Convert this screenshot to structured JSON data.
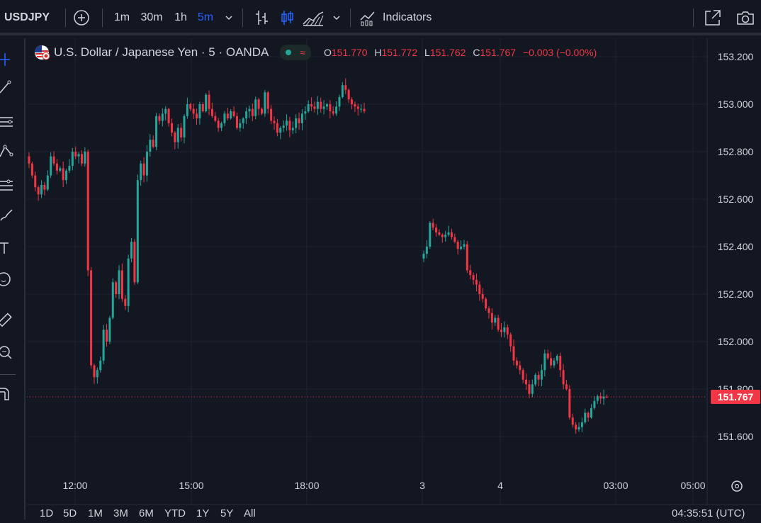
{
  "toolbar": {
    "symbol": "USDJPY",
    "intervals": [
      "1m",
      "30m",
      "1h",
      "5m"
    ],
    "active_interval": "5m",
    "indicators_label": "Indicators"
  },
  "legend": {
    "title": "U.S. Dollar / Japanese Yen · 5 · OANDA",
    "o_label": "O",
    "o_value": "151.770",
    "h_label": "H",
    "h_value": "151.772",
    "l_label": "L",
    "l_value": "151.762",
    "c_label": "C",
    "c_value": "151.767",
    "change": "−0.003 (−0.00%)"
  },
  "price_axis": {
    "labels": [
      "153.200",
      "153.000",
      "152.800",
      "152.600",
      "152.400",
      "152.200",
      "152.000",
      "151.800",
      "151.600"
    ],
    "current_price": "151.767"
  },
  "time_axis": {
    "labels": [
      "12:00",
      "15:00",
      "18:00",
      "3",
      "4",
      "03:00",
      "05:00"
    ]
  },
  "ranges": [
    "1D",
    "5D",
    "1M",
    "3M",
    "6M",
    "YTD",
    "1Y",
    "5Y",
    "All"
  ],
  "clock": "04:35:51 (UTC)",
  "colors": {
    "background": "#131722",
    "up": "#26a69a",
    "down": "#f23645",
    "accent": "#2962ff",
    "grid": "#1f2330"
  },
  "icons": {
    "add": "plus-circle-icon",
    "chart_types": [
      "bar-chart-icon",
      "candles-icon",
      "area-chart-icon"
    ],
    "left_tools": [
      "crosshair-icon",
      "trendline-icon",
      "fib-icon",
      "pattern-icon",
      "forecast-icon",
      "brush-icon",
      "text-icon",
      "emoji-icon",
      "ruler-icon",
      "zoom-icon",
      "magnet-icon"
    ]
  },
  "chart_data": {
    "type": "candlestick",
    "symbol": "USDJPY",
    "interval": "5",
    "ylim": [
      151.45,
      153.3
    ],
    "price_ticks": [
      153.2,
      153.0,
      152.8,
      152.6,
      152.4,
      152.2,
      152.0,
      151.8,
      151.6
    ],
    "last_price": 151.767,
    "time_ticks": [
      "12:00",
      "15:00",
      "18:00",
      "3",
      "4",
      "03:00",
      "05:00"
    ],
    "session_gap_after_bar": 125,
    "closes_segment_1": [
      152.75,
      152.7,
      152.65,
      152.62,
      152.66,
      152.64,
      152.7,
      152.78,
      152.75,
      152.72,
      152.73,
      152.68,
      152.72,
      152.74,
      152.8,
      152.78,
      152.79,
      152.75,
      152.8,
      152.3,
      151.9,
      151.85,
      151.88,
      151.92,
      152.05,
      152.0,
      152.1,
      152.25,
      152.2,
      152.3,
      152.18,
      152.15,
      152.35,
      152.42,
      152.25,
      152.68,
      152.75,
      152.7,
      152.8,
      152.85,
      152.82,
      152.95,
      152.93,
      152.96,
      152.98,
      152.92,
      152.88,
      152.84,
      152.9,
      152.86,
      152.95,
      153.0,
      152.98,
      152.96,
      152.94,
      153.0,
      152.97,
      153.04,
      152.98,
      152.95,
      152.93,
      152.9,
      152.92,
      152.96,
      152.94,
      152.97,
      152.95,
      152.9,
      152.92,
      152.94,
      152.97,
      152.98,
      152.95,
      153.02,
      152.98,
      152.96,
      153.05,
      152.98,
      152.93,
      152.92,
      152.88,
      152.9,
      152.91,
      152.93,
      152.89,
      152.9,
      152.94,
      152.92,
      152.96,
      152.97,
      153.0,
      152.99,
      152.98,
      153.01,
      152.98,
      152.99,
      153.0,
      152.97,
      152.96,
      152.99,
      153.03,
      153.08,
      153.06,
      153.02,
      153.0,
      152.99,
      152.98,
      152.98,
      152.97
    ],
    "closes_segment_2": [
      152.37,
      152.4,
      152.5,
      152.48,
      152.46,
      152.45,
      152.44,
      152.45,
      152.46,
      152.44,
      152.42,
      152.39,
      152.4,
      152.41,
      152.3,
      152.28,
      152.26,
      152.24,
      152.2,
      152.18,
      152.14,
      152.12,
      152.08,
      152.1,
      152.05,
      152.04,
      152.06,
      152.03,
      151.98,
      151.92,
      151.9,
      151.88,
      151.84,
      151.82,
      151.78,
      151.82,
      151.86,
      151.84,
      151.88,
      151.95,
      151.93,
      151.9,
      151.92,
      151.94,
      151.88,
      151.82,
      151.8,
      151.68,
      151.65,
      151.63,
      151.64,
      151.66,
      151.7,
      151.68,
      151.72,
      151.75,
      151.77,
      151.76,
      151.768,
      151.767
    ]
  }
}
